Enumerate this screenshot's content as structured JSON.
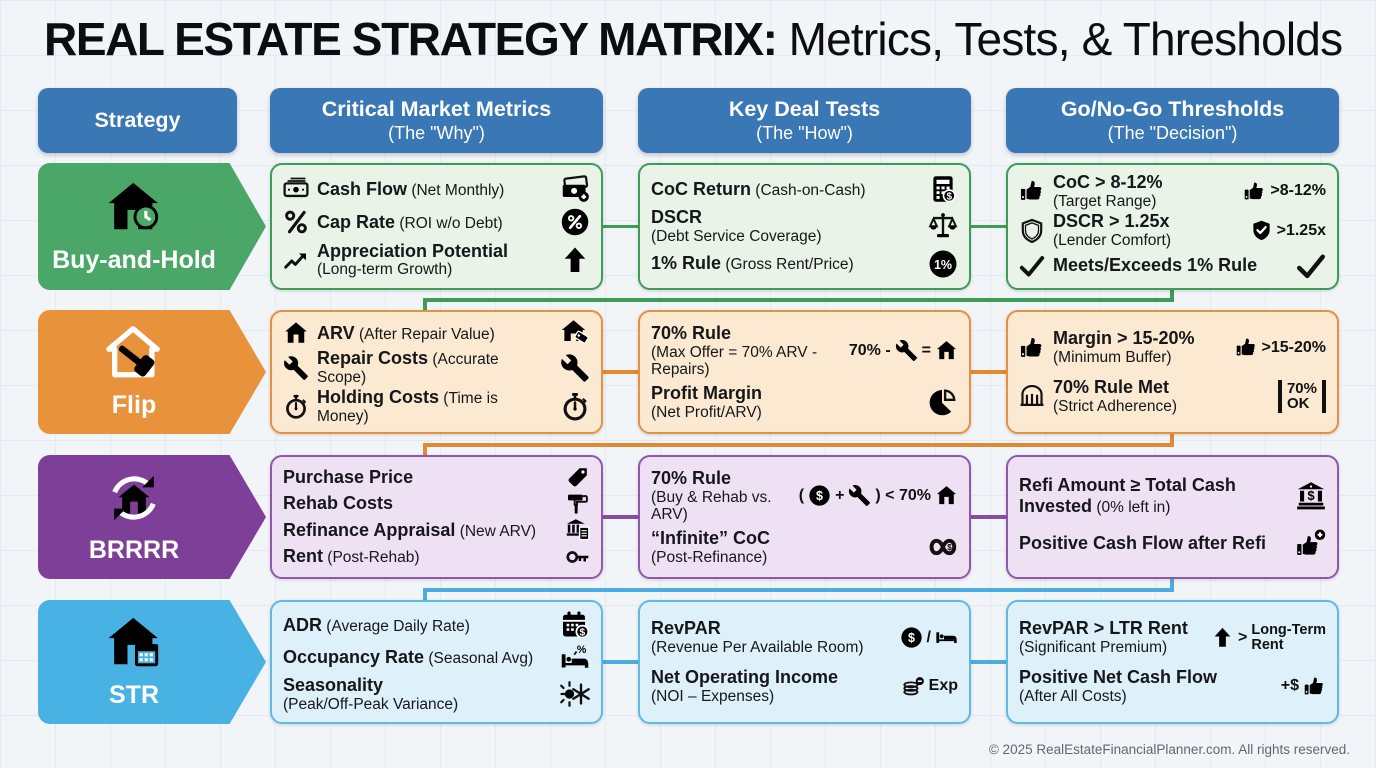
{
  "title": {
    "strong": "REAL ESTATE STRATEGY MATRIX:",
    "rest": "Metrics, Tests, & Thresholds"
  },
  "footer": "© 2025 RealEstateFinancialPlanner.com. All rights reserved.",
  "colors": {
    "header_bg": "#3a77b5",
    "page_bg": "#f2f5f8",
    "grid_line": "#e5eaf1",
    "buses": [
      "#3d9d55",
      "#e08a33",
      "#4aace0"
    ]
  },
  "headers": [
    {
      "label": "Strategy",
      "sub": ""
    },
    {
      "label": "Critical Market Metrics",
      "sub": "(The \"Why\")"
    },
    {
      "label": "Key Deal Tests",
      "sub": "(The \"How\")"
    },
    {
      "label": "Go/No-Go Thresholds",
      "sub": "(The \"Decision\")"
    }
  ],
  "rows": [
    {
      "id": "buy-and-hold",
      "label": "Buy-and-Hold",
      "icon": "house-clock-icon",
      "colors": {
        "arrow": "#4aa768",
        "border": "#3d9d55",
        "bg": "#e9f3e7",
        "line": "#3d9d55"
      },
      "metrics": [
        {
          "label": "Cash Flow",
          "sub": "(Net Monthly)",
          "left_icon": "cash-icon",
          "right": [
            {
              "icon": "cash-stack-plus-icon"
            }
          ]
        },
        {
          "label": "Cap Rate",
          "sub": "(ROI w/o Debt)",
          "left_icon": "percent-icon",
          "right": [
            {
              "icon": "percent-circle-icon"
            }
          ]
        },
        {
          "label": "Appreciation Potential",
          "sub": "(Long-term Growth)",
          "sub_block": true,
          "left_icon": "trend-up-icon",
          "right": [
            {
              "icon": "arrow-up-icon"
            }
          ]
        }
      ],
      "tests": [
        {
          "label": "CoC Return",
          "sub": "(Cash-on-Cash)",
          "right": [
            {
              "icon": "calculator-dollar-icon"
            }
          ]
        },
        {
          "label": "DSCR",
          "sub": "(Debt Service Coverage)",
          "sub_block": true,
          "right": [
            {
              "icon": "scale-icon"
            }
          ]
        },
        {
          "label": "1% Rule",
          "sub": "(Gross Rent/Price)",
          "right": [
            {
              "icon": "one-percent-circle-icon"
            }
          ]
        }
      ],
      "thresholds": [
        {
          "label": "CoC > 8-12%",
          "sub": "(Target Range)",
          "sub_block": true,
          "left_icon": "thumbs-up-icon",
          "right": [
            {
              "icon": "thumbs-up-icon"
            },
            {
              "text": ">8-12%"
            }
          ]
        },
        {
          "label": "DSCR > 1.25x",
          "sub": "(Lender Comfort)",
          "sub_block": true,
          "left_icon": "shield-icon",
          "right": [
            {
              "icon": "shield-check-icon"
            },
            {
              "text": ">1.25x"
            }
          ]
        },
        {
          "label": "Meets/Exceeds 1% Rule",
          "sub": "",
          "left_icon": "check-icon",
          "right": [
            {
              "icon": "check-icon"
            }
          ]
        }
      ]
    },
    {
      "id": "flip",
      "label": "Flip",
      "icon": "house-hammer-icon",
      "colors": {
        "arrow": "#e8923c",
        "border": "#e59140",
        "bg": "#fce9d1",
        "line": "#e08a33"
      },
      "metrics": [
        {
          "label": "ARV",
          "sub": "(After Repair Value)",
          "left_icon": "house-icon",
          "right": [
            {
              "icon": "house-tag-icon"
            }
          ]
        },
        {
          "label": "Repair Costs",
          "sub": "(Accurate Scope)",
          "left_icon": "wrench-icon",
          "right": [
            {
              "icon": "wrench-icon"
            }
          ]
        },
        {
          "label": "Holding Costs",
          "sub": "(Time is Money)",
          "left_icon": "stopwatch-icon",
          "right": [
            {
              "icon": "stopwatch-icon"
            }
          ]
        }
      ],
      "tests": [
        {
          "label": "70% Rule",
          "sub": "(Max Offer = 70% ARV - Repairs)",
          "sub_block": true,
          "right": [
            {
              "text": "70% -"
            },
            {
              "icon": "wrench-icon"
            },
            {
              "text": "="
            },
            {
              "icon": "house-icon"
            }
          ]
        },
        {
          "label": "Profit Margin",
          "sub": "(Net Profit/ARV)",
          "sub_block": true,
          "right": [
            {
              "icon": "pie-chart-icon"
            }
          ]
        }
      ],
      "thresholds": [
        {
          "label": "Margin > 15-20%",
          "sub": "(Minimum Buffer)",
          "sub_block": true,
          "left_icon": "thumbs-up-icon",
          "right": [
            {
              "icon": "thumbs-up-icon"
            },
            {
              "text": ">15-20%"
            }
          ]
        },
        {
          "label": "70% Rule Met",
          "sub": "(Strict Adherence)",
          "sub_block": true,
          "left_icon": "gate-icon",
          "right": [
            {
              "stack": [
                "70%",
                "OK"
              ],
              "style": "ibeam"
            }
          ]
        }
      ]
    },
    {
      "id": "brrrr",
      "label": "BRRRR",
      "icon": "house-cycle-icon",
      "colors": {
        "arrow": "#7d3f98",
        "border": "#9257a8",
        "bg": "#efe1f4",
        "line": "#8a4da3"
      },
      "metrics": [
        {
          "label": "Purchase Price",
          "sub": "",
          "right": [
            {
              "icon": "tag-icon"
            }
          ]
        },
        {
          "label": "Rehab Costs",
          "sub": "",
          "right": [
            {
              "icon": "paint-roller-icon"
            }
          ]
        },
        {
          "label": "Refinance Appraisal",
          "sub": "(New ARV)",
          "right": [
            {
              "icon": "bank-doc-icon"
            }
          ]
        },
        {
          "label": "Rent",
          "sub": "(Post-Rehab)",
          "right": [
            {
              "icon": "key-icon"
            }
          ]
        }
      ],
      "tests": [
        {
          "label": "70% Rule",
          "sub": "(Buy & Rehab vs. ARV)",
          "sub_block": true,
          "right": [
            {
              "text": "("
            },
            {
              "icon": "dollar-circle-icon"
            },
            {
              "text": "+"
            },
            {
              "icon": "wrench-icon"
            },
            {
              "text": ") < 70%"
            },
            {
              "icon": "house-icon"
            }
          ]
        },
        {
          "label": "“Infinite” CoC",
          "sub": "(Post-Refinance)",
          "sub_block": true,
          "right": [
            {
              "icon": "infinity-dollar-icon"
            }
          ]
        }
      ],
      "thresholds": [
        {
          "label": "Refi Amount ≥ Total Cash Invested",
          "sub": "(0% left in)",
          "right": [
            {
              "icon": "bank-dollar-icon"
            }
          ]
        },
        {
          "label": "Positive Cash Flow after Refi",
          "sub": "",
          "right": [
            {
              "icon": "thumbs-up-plus-icon"
            }
          ]
        }
      ]
    },
    {
      "id": "str",
      "label": "STR",
      "icon": "house-calendar-icon",
      "colors": {
        "arrow": "#47b2e3",
        "border": "#5fbbe4",
        "bg": "#def0f9",
        "line": "#4aace0"
      },
      "metrics": [
        {
          "label": "ADR",
          "sub": "(Average Daily Rate)",
          "right": [
            {
              "icon": "calendar-dollar-icon"
            }
          ]
        },
        {
          "label": "Occupancy Rate",
          "sub": "(Seasonal Avg)",
          "right": [
            {
              "icon": "bed-percent-icon"
            }
          ]
        },
        {
          "label": "Seasonality",
          "sub": "(Peak/Off-Peak Variance)",
          "sub_block": true,
          "right": [
            {
              "icon": "sun-snowflake-icon"
            }
          ]
        }
      ],
      "tests": [
        {
          "label": "RevPAR",
          "sub": "(Revenue Per Available Room)",
          "sub_block": true,
          "right": [
            {
              "icon": "dollar-circle-icon"
            },
            {
              "text": "/"
            },
            {
              "icon": "bed-icon"
            }
          ]
        },
        {
          "label": "Net Operating Income",
          "sub": "(NOI – Expenses)",
          "sub_block": true,
          "right": [
            {
              "icon": "coins-minus-icon"
            },
            {
              "text": "Exp"
            }
          ]
        }
      ],
      "thresholds": [
        {
          "label": "RevPAR > LTR Rent",
          "sub": "(Significant Premium)",
          "sub_block": true,
          "right": [
            {
              "icon": "arrow-up-icon"
            },
            {
              "text": ">"
            },
            {
              "stack": [
                "Long-Term",
                "Rent"
              ]
            }
          ]
        },
        {
          "label": "Positive Net Cash Flow",
          "sub": "(After All Costs)",
          "sub_block": true,
          "right": [
            {
              "text": "+$"
            },
            {
              "icon": "thumbs-up-icon"
            }
          ]
        }
      ]
    }
  ]
}
